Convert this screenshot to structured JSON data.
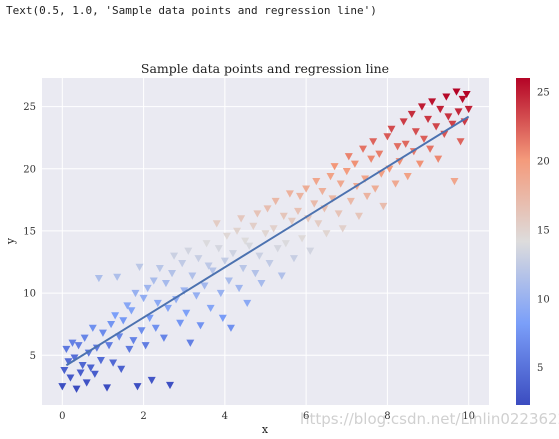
{
  "output_text": "Text(0.5, 1.0, 'Sample data points and regression line')",
  "watermark": "https://blog.csdn.net/Linlin022362242",
  "chart_data": {
    "type": "scatter",
    "title": "Sample data points and regression line",
    "xlabel": "x",
    "ylabel": "y",
    "xlim": [
      -0.5,
      10.5
    ],
    "ylim": [
      1,
      27.3
    ],
    "xticks": [
      0,
      2,
      4,
      6,
      8,
      10
    ],
    "yticks": [
      5,
      10,
      15,
      20,
      25
    ],
    "grid": true,
    "marker": "triangle-down",
    "colormap": "coolwarm",
    "color_by": "y",
    "colorbar": {
      "range": [
        2.3,
        26
      ],
      "ticks": [
        5,
        10,
        15,
        20,
        25
      ]
    },
    "background": "#eaeaf2",
    "regression_line": {
      "x": [
        0.1,
        10
      ],
      "y": [
        4.2,
        24.2
      ],
      "color": "#4c72b0"
    },
    "points": [
      [
        0.0,
        2.5
      ],
      [
        0.05,
        3.8
      ],
      [
        0.1,
        5.5
      ],
      [
        0.15,
        4.5
      ],
      [
        0.2,
        3.2
      ],
      [
        0.25,
        6.0
      ],
      [
        0.3,
        4.8
      ],
      [
        0.35,
        2.3
      ],
      [
        0.4,
        5.8
      ],
      [
        0.45,
        3.6
      ],
      [
        0.5,
        4.2
      ],
      [
        0.55,
        6.4
      ],
      [
        0.6,
        2.8
      ],
      [
        0.65,
        5.2
      ],
      [
        0.7,
        4.0
      ],
      [
        0.75,
        7.2
      ],
      [
        0.8,
        3.5
      ],
      [
        0.85,
        5.6
      ],
      [
        0.9,
        11.2
      ],
      [
        0.95,
        4.6
      ],
      [
        1.0,
        6.8
      ],
      [
        1.1,
        2.4
      ],
      [
        1.15,
        5.8
      ],
      [
        1.2,
        7.5
      ],
      [
        1.25,
        4.4
      ],
      [
        1.3,
        8.2
      ],
      [
        1.35,
        11.3
      ],
      [
        1.4,
        6.5
      ],
      [
        1.45,
        3.9
      ],
      [
        1.5,
        7.8
      ],
      [
        1.6,
        9.0
      ],
      [
        1.65,
        5.5
      ],
      [
        1.7,
        8.6
      ],
      [
        1.75,
        6.2
      ],
      [
        1.8,
        10.0
      ],
      [
        1.85,
        2.5
      ],
      [
        1.9,
        12.1
      ],
      [
        1.95,
        7.0
      ],
      [
        2.0,
        9.6
      ],
      [
        2.05,
        5.8
      ],
      [
        2.1,
        10.4
      ],
      [
        2.15,
        8.0
      ],
      [
        2.2,
        3.0
      ],
      [
        2.25,
        11.0
      ],
      [
        2.3,
        7.2
      ],
      [
        2.35,
        9.2
      ],
      [
        2.4,
        12.0
      ],
      [
        2.5,
        6.4
      ],
      [
        2.55,
        10.8
      ],
      [
        2.6,
        8.8
      ],
      [
        2.65,
        2.6
      ],
      [
        2.7,
        11.6
      ],
      [
        2.75,
        13.0
      ],
      [
        2.8,
        9.5
      ],
      [
        2.9,
        7.6
      ],
      [
        2.95,
        12.4
      ],
      [
        3.0,
        10.2
      ],
      [
        3.05,
        8.4
      ],
      [
        3.1,
        13.4
      ],
      [
        3.15,
        6.0
      ],
      [
        3.2,
        11.4
      ],
      [
        3.3,
        9.8
      ],
      [
        3.35,
        12.8
      ],
      [
        3.4,
        7.4
      ],
      [
        3.5,
        10.6
      ],
      [
        3.55,
        14.0
      ],
      [
        3.6,
        12.2
      ],
      [
        3.65,
        8.8
      ],
      [
        3.7,
        11.8
      ],
      [
        3.8,
        15.6
      ],
      [
        3.85,
        13.6
      ],
      [
        3.9,
        10.0
      ],
      [
        3.95,
        8.0
      ],
      [
        4.0,
        12.6
      ],
      [
        4.05,
        14.6
      ],
      [
        4.1,
        11.0
      ],
      [
        4.15,
        7.2
      ],
      [
        4.2,
        13.2
      ],
      [
        4.3,
        15.0
      ],
      [
        4.35,
        10.4
      ],
      [
        4.4,
        16.0
      ],
      [
        4.45,
        12.0
      ],
      [
        4.5,
        14.2
      ],
      [
        4.55,
        9.2
      ],
      [
        4.6,
        13.8
      ],
      [
        4.7,
        15.4
      ],
      [
        4.75,
        11.6
      ],
      [
        4.8,
        16.4
      ],
      [
        4.85,
        13.0
      ],
      [
        4.9,
        10.8
      ],
      [
        5.0,
        14.8
      ],
      [
        5.05,
        16.8
      ],
      [
        5.1,
        12.4
      ],
      [
        5.2,
        15.2
      ],
      [
        5.25,
        17.4
      ],
      [
        5.3,
        13.6
      ],
      [
        5.4,
        11.4
      ],
      [
        5.45,
        16.2
      ],
      [
        5.5,
        14.0
      ],
      [
        5.6,
        18.0
      ],
      [
        5.65,
        15.8
      ],
      [
        5.7,
        12.8
      ],
      [
        5.8,
        16.6
      ],
      [
        5.85,
        17.8
      ],
      [
        5.9,
        14.4
      ],
      [
        6.0,
        18.4
      ],
      [
        6.05,
        16.0
      ],
      [
        6.1,
        13.4
      ],
      [
        6.2,
        17.2
      ],
      [
        6.25,
        19.0
      ],
      [
        6.3,
        15.6
      ],
      [
        6.4,
        18.2
      ],
      [
        6.45,
        16.8
      ],
      [
        6.5,
        14.8
      ],
      [
        6.6,
        19.4
      ],
      [
        6.65,
        17.6
      ],
      [
        6.7,
        20.2
      ],
      [
        6.8,
        16.4
      ],
      [
        6.85,
        18.8
      ],
      [
        6.9,
        15.2
      ],
      [
        7.0,
        19.8
      ],
      [
        7.05,
        21.0
      ],
      [
        7.1,
        17.4
      ],
      [
        7.2,
        20.4
      ],
      [
        7.25,
        18.6
      ],
      [
        7.3,
        16.2
      ],
      [
        7.4,
        21.6
      ],
      [
        7.45,
        19.2
      ],
      [
        7.5,
        17.8
      ],
      [
        7.6,
        20.8
      ],
      [
        7.65,
        22.2
      ],
      [
        7.7,
        18.4
      ],
      [
        7.8,
        21.2
      ],
      [
        7.85,
        19.6
      ],
      [
        7.9,
        17.0
      ],
      [
        8.0,
        22.6
      ],
      [
        8.05,
        20.0
      ],
      [
        8.1,
        23.2
      ],
      [
        8.2,
        18.8
      ],
      [
        8.25,
        21.8
      ],
      [
        8.3,
        20.6
      ],
      [
        8.4,
        23.8
      ],
      [
        8.45,
        22.0
      ],
      [
        8.5,
        19.4
      ],
      [
        8.6,
        24.4
      ],
      [
        8.65,
        21.4
      ],
      [
        8.7,
        23.0
      ],
      [
        8.8,
        20.4
      ],
      [
        8.85,
        25.0
      ],
      [
        8.9,
        22.4
      ],
      [
        9.0,
        24.0
      ],
      [
        9.05,
        21.6
      ],
      [
        9.1,
        25.4
      ],
      [
        9.2,
        23.4
      ],
      [
        9.25,
        20.8
      ],
      [
        9.3,
        24.8
      ],
      [
        9.4,
        22.8
      ],
      [
        9.45,
        25.8
      ],
      [
        9.5,
        24.2
      ],
      [
        9.6,
        23.6
      ],
      [
        9.65,
        19.0
      ],
      [
        9.7,
        26.2
      ],
      [
        9.75,
        24.6
      ],
      [
        9.8,
        22.2
      ],
      [
        9.85,
        25.6
      ],
      [
        9.9,
        23.8
      ],
      [
        9.95,
        26.0
      ],
      [
        10.0,
        24.8
      ]
    ]
  }
}
